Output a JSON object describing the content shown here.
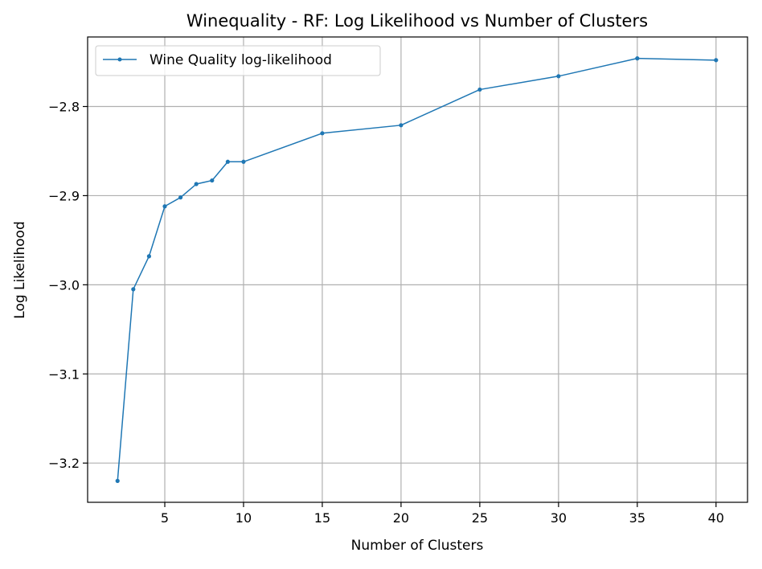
{
  "chart_data": {
    "type": "line",
    "title": "Winequality - RF: Log Likelihood vs Number of Clusters",
    "xlabel": "Number of Clusters",
    "ylabel": "Log Likelihood",
    "xlim": [
      0.1,
      42
    ],
    "ylim": [
      -3.244,
      -2.722
    ],
    "xticks": [
      5,
      10,
      15,
      20,
      25,
      30,
      35,
      40
    ],
    "xtick_labels": [
      "5",
      "10",
      "15",
      "20",
      "25",
      "30",
      "35",
      "40"
    ],
    "yticks": [
      -3.2,
      -3.1,
      -3.0,
      -2.9,
      -2.8
    ],
    "ytick_labels": [
      "−3.2",
      "−3.1",
      "−3.0",
      "−2.9",
      "−2.8"
    ],
    "grid": true,
    "legend_position": "top-left",
    "series": [
      {
        "name": "Wine Quality log-likelihood",
        "color": "#1f77b4",
        "x": [
          2,
          3,
          4,
          5,
          6,
          7,
          8,
          9,
          10,
          15,
          20,
          25,
          30,
          35,
          40
        ],
        "y": [
          -3.22,
          -3.005,
          -2.968,
          -2.912,
          -2.902,
          -2.887,
          -2.883,
          -2.862,
          -2.862,
          -2.83,
          -2.821,
          -2.781,
          -2.766,
          -2.746,
          -2.748
        ]
      }
    ]
  }
}
